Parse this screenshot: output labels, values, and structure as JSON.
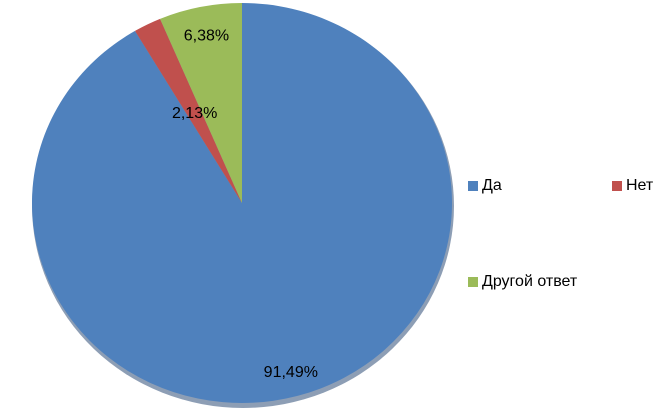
{
  "chart_data": {
    "type": "pie",
    "categories": [
      "Да",
      "Нет",
      "Другой ответ"
    ],
    "values": [
      91.49,
      2.13,
      6.38
    ],
    "value_labels": [
      "91,49%",
      "2,13%",
      "6,38%"
    ],
    "colors": [
      "#4f81bd",
      "#c0504d",
      "#9bbb59"
    ],
    "legend": "right"
  }
}
